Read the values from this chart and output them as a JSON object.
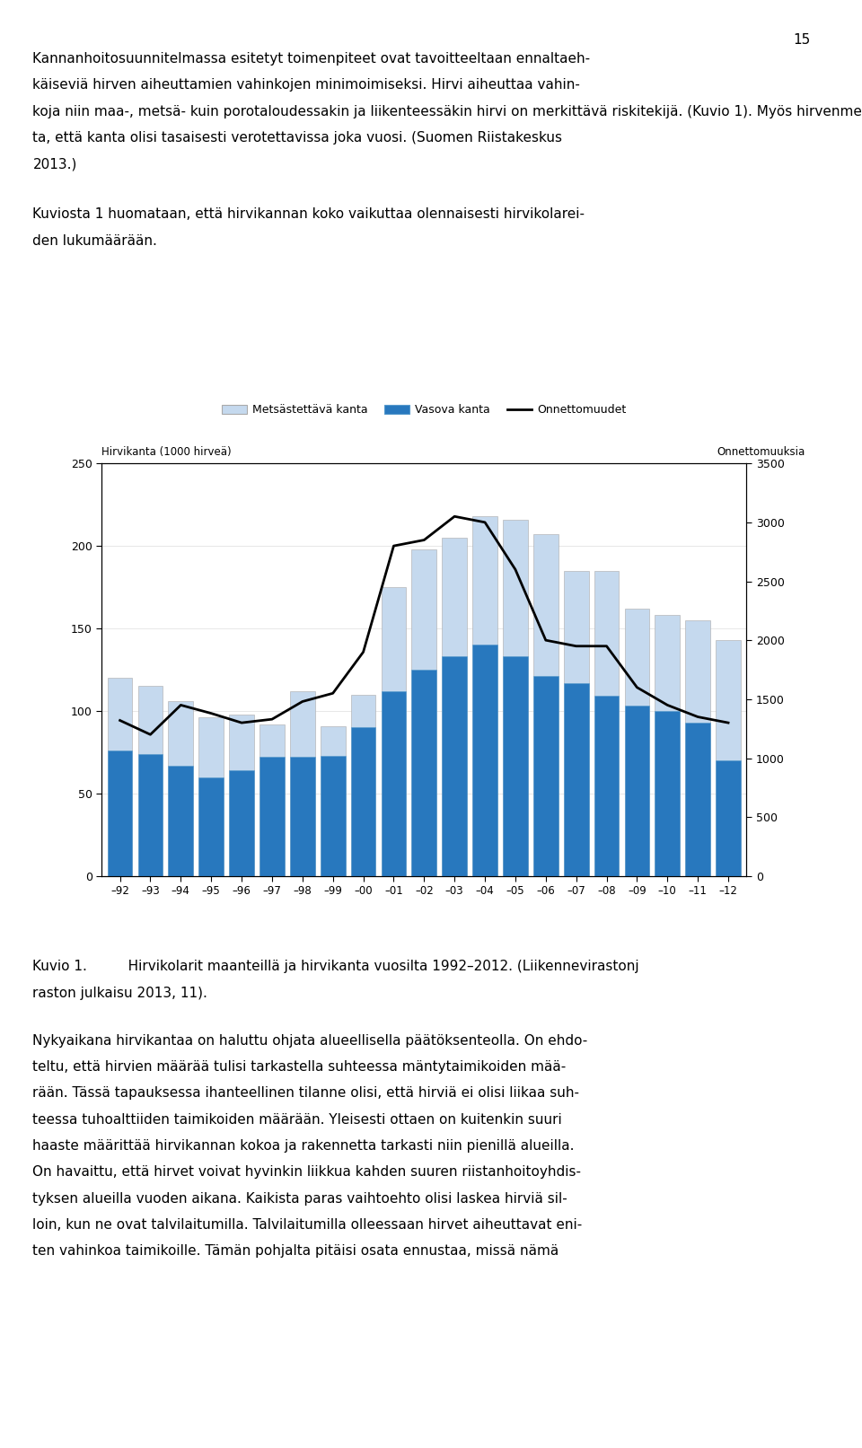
{
  "years": [
    "–92",
    "–93",
    "–94",
    "–95",
    "–96",
    "–97",
    "–98",
    "–99",
    "–00",
    "–01",
    "–02",
    "–03",
    "–04",
    "–05",
    "–06",
    "–07",
    "–08",
    "–09",
    "–10",
    "–11",
    "–12"
  ],
  "metsastettava": [
    120,
    115,
    106,
    96,
    98,
    92,
    112,
    91,
    110,
    175,
    198,
    205,
    218,
    216,
    207,
    185,
    185,
    162,
    158,
    155,
    143
  ],
  "vasova": [
    76,
    74,
    67,
    60,
    64,
    72,
    72,
    73,
    90,
    112,
    125,
    133,
    140,
    133,
    121,
    117,
    109,
    103,
    100,
    93,
    70
  ],
  "onnettomuudet": [
    1320,
    1200,
    1450,
    1380,
    1300,
    1330,
    1480,
    1550,
    1900,
    2800,
    2850,
    3050,
    3000,
    2600,
    2000,
    1950,
    1950,
    1600,
    1450,
    1350,
    1300
  ],
  "left_axis_label": "Hirvikanta (1000 hirveä)",
  "right_axis_label": "Onnettomuuksia",
  "ylim_left": [
    0,
    250
  ],
  "ylim_right": [
    0,
    3500
  ],
  "yticks_left": [
    0,
    50,
    100,
    150,
    200,
    250
  ],
  "yticks_right": [
    0,
    500,
    1000,
    1500,
    2000,
    2500,
    3000,
    3500
  ],
  "legend_labels": [
    "Metsästettävä kanta",
    "Vasova kanta",
    "Onnettomuudet"
  ],
  "bar_color_light": "#c5d9ee",
  "bar_color_dark": "#2878be",
  "line_color": "#000000",
  "page_number": "15",
  "para1": [
    "Kannanhoitosuunnitelmassa esitetyt toimenpiteet ovat tavoitteeltaan ennaltaeh-",
    "käiseviä hirven aiheuttamien vahinkojen minimoimiseksi. Hirvi aiheuttaa vahin-",
    "koja niin maa-, metsä- kuin porotaloudessakin ja liikenteessäkin hirvi on merkittävä riskitekijä. (Kuvio 1). Myös hirvenmetsästys harrastuksena halutaan turva-",
    "ta, että kanta olisi tasaisesti verotettavissa joka vuosi. (Suomen Riistakeskus",
    "2013.)"
  ],
  "para2": [
    "Kuviosta 1 huomataan, että hirvikannan koko vaikuttaa olennaisesti hirvikolarei-",
    "den lukumäärään."
  ],
  "caption1": "Kuvio 1.   Hirvikolarit maanteillä ja hirvikanta vuosilta 1992–2012. (Liikennevirastonj",
  "caption2": "raston julkaisu 2013, 11).",
  "para3": [
    "Nykyaikana hirvikantaa on haluttu ohjata alueellisella päätöksenteolla. On ehdo-",
    "teltu, että hirvien määrää tulisi tarkastella suhteessa mäntytaimikoiden mää-",
    "rään. Tässä tapauksessa ihanteellinen tilanne olisi, että hirviä ei olisi liikaa suh-",
    "teessa tuhoalttiiden taimikoiden määrään. Yleisesti ottaen on kuitenkin suuri",
    "haaste määrittää hirvikannan kokoa ja rakennetta tarkasti niin pienillä alueilla.",
    "On havaittu, että hirvet voivat hyvinkin liikkua kahden suuren riistanhoitoyhdis-",
    "tyksen alueilla vuoden aikana. Kaikista paras vaihtoehto olisi laskea hirviä sil-",
    "loin, kun ne ovat talvilaitumilla. Talvilaitumilla olleessaan hirvet aiheuttavat eni-",
    "ten vahinkoa taimikoille. Tämän pohjalta pitäisi osata ennustaa, missä nämä"
  ]
}
